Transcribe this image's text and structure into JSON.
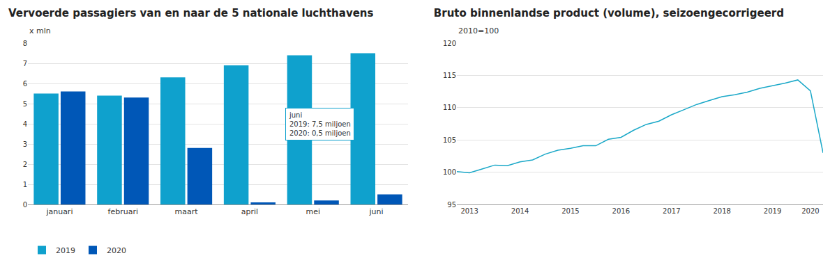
{
  "chart_data": [
    {
      "type": "bar",
      "title": "Vervoerde passagiers van en naar de 5 nationale luchthavens",
      "ylabel": "x mln",
      "categories": [
        "januari",
        "februari",
        "maart",
        "april",
        "mei",
        "juni"
      ],
      "series": [
        {
          "name": "2019",
          "color": "#0fa1cd",
          "values": [
            5.5,
            5.4,
            6.3,
            6.9,
            7.4,
            7.5
          ]
        },
        {
          "name": "2020",
          "color": "#0057b7",
          "values": [
            5.6,
            5.3,
            2.8,
            0.1,
            0.2,
            0.5
          ]
        }
      ],
      "ylim": [
        0,
        8
      ],
      "yticks": [
        0,
        1,
        2,
        3,
        4,
        5,
        6,
        7,
        8
      ],
      "grid": true,
      "legend": "bottom",
      "annotations": [
        {
          "category": "juni",
          "text": [
            "juni",
            "2019: 7,5 miljoen",
            "2020: 0,5 miljoen"
          ]
        }
      ]
    },
    {
      "type": "line",
      "title": "Bruto binnenlandse product (volume), seizoengecorrigeerd",
      "subtitle": "2010=100",
      "categories": [
        null,
        "2013",
        null,
        null,
        null,
        "2014",
        null,
        null,
        null,
        "2015",
        null,
        null,
        null,
        "2016",
        null,
        null,
        null,
        "2017",
        null,
        null,
        null,
        "2018",
        null,
        null,
        null,
        "2019",
        null,
        null,
        "2020",
        null
      ],
      "values": [
        100.1,
        99.9,
        100.5,
        101.1,
        101.0,
        101.6,
        101.9,
        102.8,
        103.4,
        103.7,
        104.1,
        104.1,
        105.1,
        105.4,
        106.5,
        107.4,
        107.9,
        108.9,
        109.7,
        110.5,
        111.1,
        111.7,
        112.0,
        112.4,
        113.0,
        113.4,
        113.8,
        114.3,
        112.6,
        103.0
      ],
      "color": "#1aa8c8",
      "ylim": [
        95,
        120
      ],
      "yticks": [
        95,
        100,
        105,
        110,
        115,
        120
      ],
      "grid": true
    }
  ]
}
